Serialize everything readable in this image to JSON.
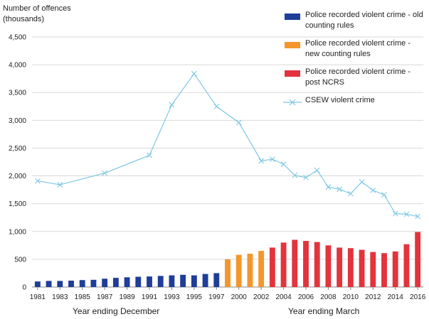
{
  "chart_data": {
    "type": "bar",
    "ylabel": "Number of offences (thousands)",
    "ylim": [
      0,
      4500
    ],
    "yticks": [
      "0",
      "500",
      "1,000",
      "1,500",
      "2,000",
      "2,500",
      "3,000",
      "3,500",
      "4,000",
      "4,500"
    ],
    "xtick_labels": [
      "1981",
      "1983",
      "1985",
      "1987",
      "1989",
      "1991",
      "1993",
      "1995",
      "1997",
      "2000",
      "2002",
      "2004",
      "2006",
      "2008",
      "2010",
      "2012",
      "2014",
      "2016"
    ],
    "x_group_labels": [
      "Year ending December",
      "Year ending March"
    ],
    "x_years": [
      1981,
      1982,
      1983,
      1984,
      1985,
      1986,
      1987,
      1988,
      1989,
      1990,
      1991,
      1992,
      1993,
      1994,
      1995,
      1996,
      1997,
      1999,
      2000,
      2001,
      2002,
      2003,
      2004,
      2005,
      2006,
      2007,
      2008,
      2009,
      2010,
      2011,
      2012,
      2013,
      2014,
      2015,
      2016
    ],
    "series": [
      {
        "name": "Police recorded violent crime - old counting rules",
        "color": "#1f3d99",
        "kind": "bar",
        "x": [
          1981,
          1982,
          1983,
          1984,
          1985,
          1986,
          1987,
          1988,
          1989,
          1990,
          1991,
          1992,
          1993,
          1994,
          1995,
          1996,
          1997
        ],
        "values": [
          100,
          110,
          110,
          115,
          125,
          130,
          150,
          165,
          175,
          185,
          190,
          200,
          210,
          220,
          210,
          235,
          250
        ]
      },
      {
        "name": "Police recorded violent crime - new counting rules",
        "color": "#f4962c",
        "kind": "bar",
        "x": [
          1999,
          2000,
          2001,
          2002
        ],
        "values": [
          500,
          580,
          600,
          650
        ]
      },
      {
        "name": "Police recorded violent crime - post NCRS",
        "color": "#e3333c",
        "kind": "bar",
        "x": [
          2003,
          2004,
          2005,
          2006,
          2007,
          2008,
          2009,
          2010,
          2011,
          2012,
          2013,
          2014,
          2015,
          2016
        ],
        "values": [
          710,
          800,
          850,
          830,
          810,
          750,
          710,
          700,
          670,
          630,
          610,
          640,
          770,
          990
        ]
      },
      {
        "name": "CSEW violent crime",
        "color": "#7ec8e3",
        "kind": "line",
        "x": [
          1981,
          1983,
          1987,
          1991,
          1993,
          1995,
          1997,
          2000,
          2002,
          2003,
          2004,
          2005,
          2006,
          2007,
          2008,
          2009,
          2010,
          2011,
          2012,
          2013,
          2014,
          2015,
          2016
        ],
        "values": [
          1910,
          1840,
          2050,
          2370,
          3280,
          3840,
          3250,
          2960,
          2270,
          2300,
          2210,
          2010,
          1970,
          2100,
          1800,
          1760,
          1680,
          1890,
          1740,
          1660,
          1320,
          1310,
          1270
        ]
      }
    ]
  }
}
